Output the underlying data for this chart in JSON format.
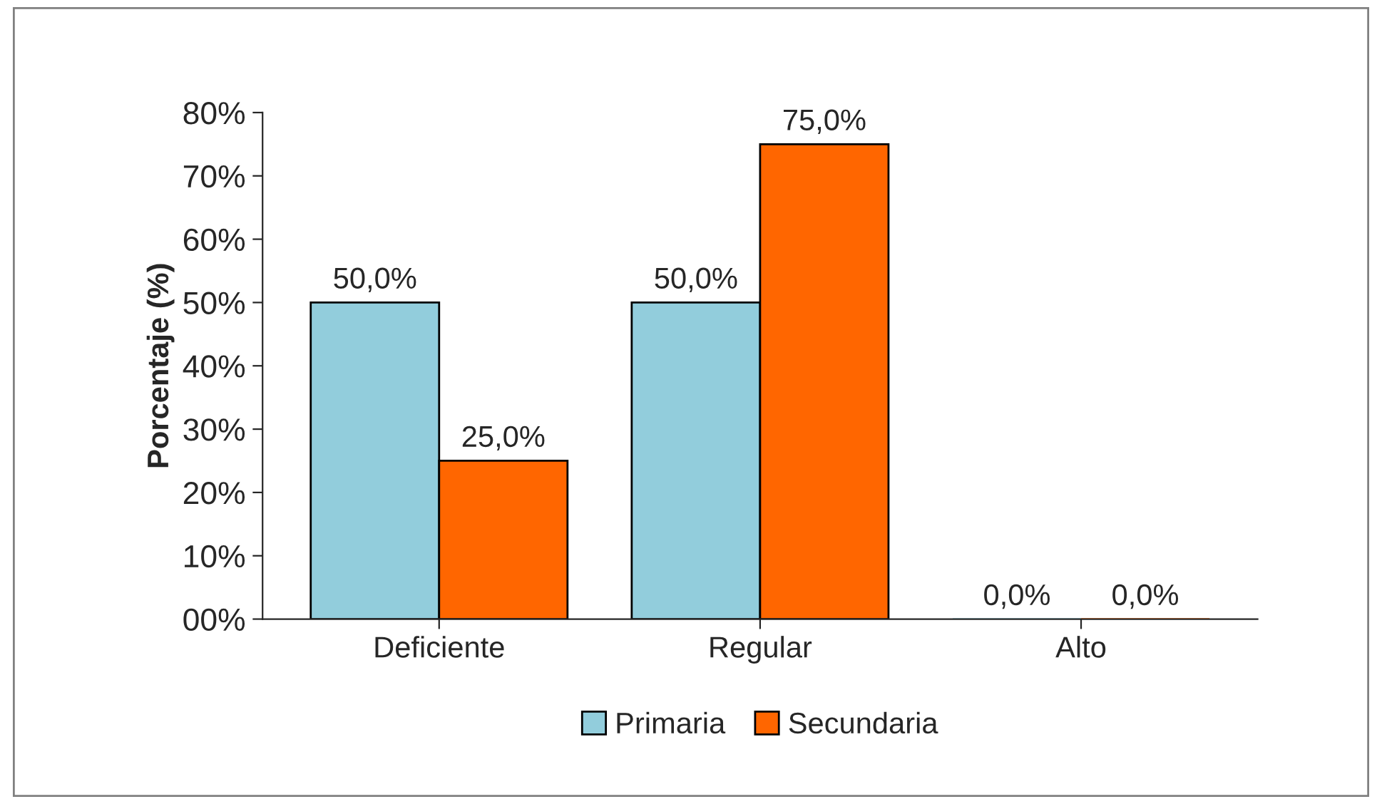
{
  "chart_data": {
    "type": "bar",
    "ylabel": "Porcentaje (%)",
    "categories": [
      "Deficiente",
      "Regular",
      "Alto"
    ],
    "series": [
      {
        "name": "Primaria",
        "color": "#92cddc",
        "values": [
          50,
          50,
          0
        ],
        "value_labels": [
          "50,0%",
          "50,0%",
          "0,0%"
        ]
      },
      {
        "name": "Secundaria",
        "color": "#ff6600",
        "values": [
          25,
          75,
          0
        ],
        "value_labels": [
          "25,0%",
          "75,0%",
          "0,0%"
        ]
      }
    ],
    "ylim": [
      0,
      80
    ],
    "yticks": [
      {
        "value": 0,
        "label": "00%"
      },
      {
        "value": 10,
        "label": "10%"
      },
      {
        "value": 20,
        "label": "20%"
      },
      {
        "value": 30,
        "label": "30%"
      },
      {
        "value": 40,
        "label": "40%"
      },
      {
        "value": 50,
        "label": "50%"
      },
      {
        "value": 60,
        "label": "60%"
      },
      {
        "value": 70,
        "label": "70%"
      },
      {
        "value": 80,
        "label": "80%"
      }
    ],
    "grid": false,
    "legend": "bottom"
  }
}
